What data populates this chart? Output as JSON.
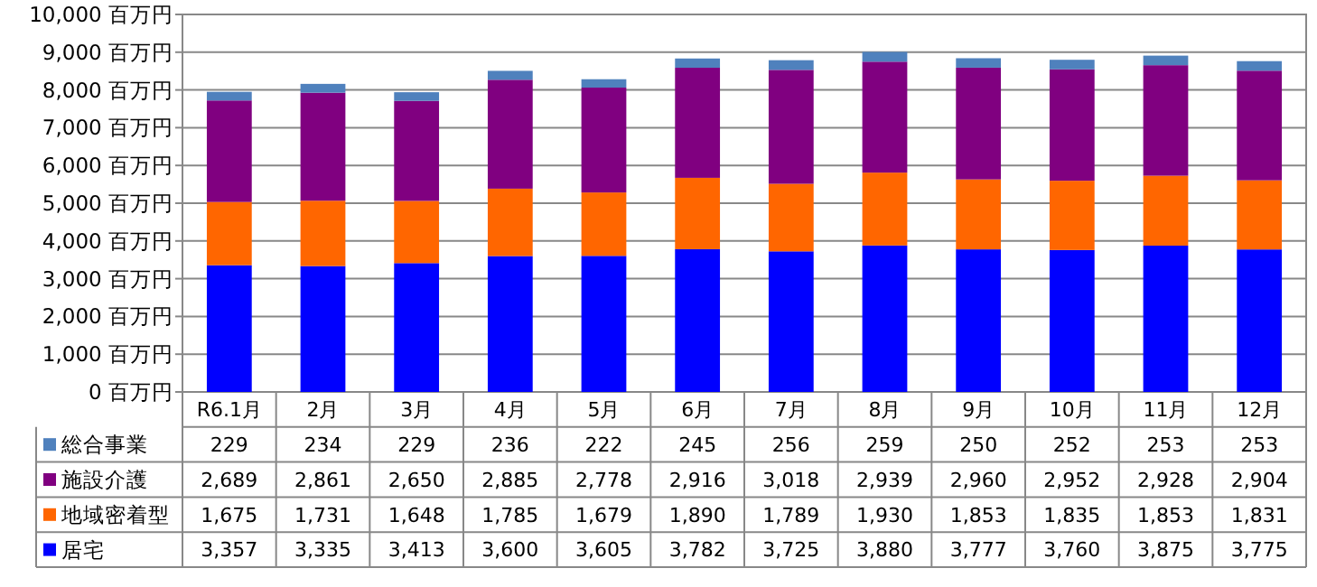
{
  "chart_data": {
    "type": "bar",
    "stacked": true,
    "grid": "y",
    "legend": "bottom",
    "categories": [
      "R6.1月",
      "2月",
      "3月",
      "4月",
      "5月",
      "6月",
      "7月",
      "8月",
      "9月",
      "10月",
      "11月",
      "12月"
    ],
    "ylim": [
      0,
      10000
    ],
    "yticks": [
      {
        "value": 0,
        "label": "0 百万円"
      },
      {
        "value": 1000,
        "label": "1,000 百万円"
      },
      {
        "value": 2000,
        "label": "2,000 百万円"
      },
      {
        "value": 3000,
        "label": "3,000 百万円"
      },
      {
        "value": 4000,
        "label": "4,000 百万円"
      },
      {
        "value": 5000,
        "label": "5,000 百万円"
      },
      {
        "value": 6000,
        "label": "6,000 百万円"
      },
      {
        "value": 7000,
        "label": "7,000 百万円"
      },
      {
        "value": 8000,
        "label": "8,000 百万円"
      },
      {
        "value": 9000,
        "label": "9,000 百万円"
      },
      {
        "value": 10000,
        "label": "10,000 百万円"
      }
    ],
    "series": [
      {
        "name": "居宅",
        "color": "#0000ff",
        "values": [
          3357,
          3335,
          3413,
          3600,
          3605,
          3782,
          3725,
          3880,
          3777,
          3760,
          3875,
          3775
        ],
        "value_labels": [
          "3,357",
          "3,335",
          "3,413",
          "3,600",
          "3,605",
          "3,782",
          "3,725",
          "3,880",
          "3,777",
          "3,760",
          "3,875",
          "3,775"
        ]
      },
      {
        "name": "地域密着型",
        "color": "#ff6600",
        "values": [
          1675,
          1731,
          1648,
          1785,
          1679,
          1890,
          1789,
          1930,
          1853,
          1835,
          1853,
          1831
        ],
        "value_labels": [
          "1,675",
          "1,731",
          "1,648",
          "1,785",
          "1,679",
          "1,890",
          "1,789",
          "1,930",
          "1,853",
          "1,835",
          "1,853",
          "1,831"
        ]
      },
      {
        "name": "施設介護",
        "color": "#800080",
        "values": [
          2689,
          2861,
          2650,
          2885,
          2778,
          2916,
          3018,
          2939,
          2960,
          2952,
          2928,
          2904
        ],
        "value_labels": [
          "2,689",
          "2,861",
          "2,650",
          "2,885",
          "2,778",
          "2,916",
          "3,018",
          "2,939",
          "2,960",
          "2,952",
          "2,928",
          "2,904"
        ]
      },
      {
        "name": "総合事業",
        "color": "#4f81bd",
        "values": [
          229,
          234,
          229,
          236,
          222,
          245,
          256,
          259,
          250,
          252,
          253,
          253
        ],
        "value_labels": [
          "229",
          "234",
          "229",
          "236",
          "222",
          "245",
          "256",
          "259",
          "250",
          "252",
          "253",
          "253"
        ]
      }
    ]
  }
}
